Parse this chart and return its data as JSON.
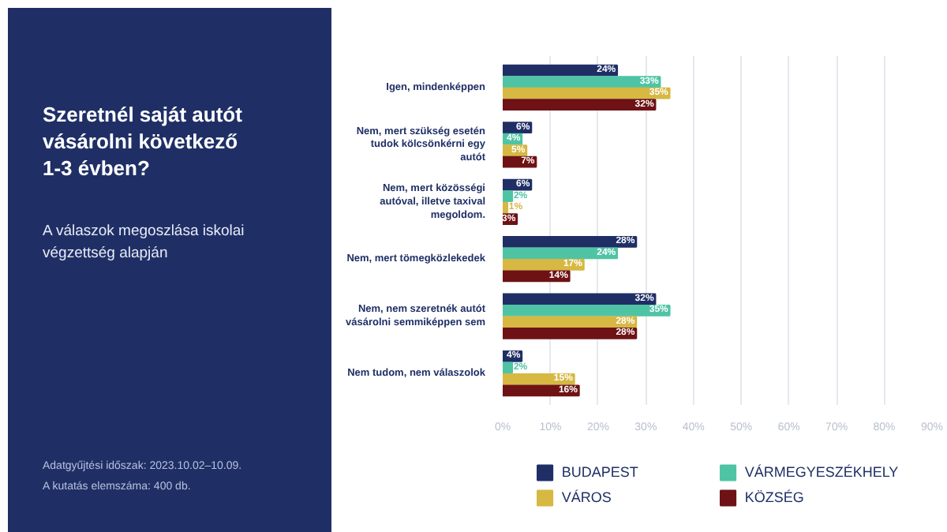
{
  "chart_data": {
    "type": "bar",
    "orientation": "horizontal",
    "title": "Szeretnél saját autót vásárolni következő 1-3 évben?",
    "subtitle": "A válaszok megoszlása iskolai végzettség alapján",
    "annotations": [
      "Adatgyűjtési időszak: 2023.10.02–10.09.",
      "A kutatás elemszáma: 400 db."
    ],
    "categories": [
      "Igen, mindenképpen",
      "Nem, mert szükség esetén tudok kölcsönkérni egy autót",
      "Nem, mert közösségi autóval, illetve taxival megoldom.",
      "Nem, mert tömegközlekedek",
      "Nem, nem szeretnék autót vásárolni semmiképpen sem",
      "Nem tudom, nem válaszolok"
    ],
    "series": [
      {
        "name": "BUDAPEST",
        "color": "#1f2f66",
        "values": [
          24,
          6,
          6,
          28,
          32,
          4
        ],
        "value_labels": [
          "24%",
          "6%",
          "6%",
          "28%",
          "32%",
          "4%"
        ]
      },
      {
        "name": "VÁRMEGYESZÉKHELY",
        "color": "#4fc4a4",
        "values": [
          33,
          4,
          2,
          24,
          35,
          2
        ],
        "value_labels": [
          "33%",
          "4%",
          "2%",
          "24%",
          "35%",
          "2%"
        ]
      },
      {
        "name": "VÁROS",
        "color": "#d6b843",
        "values": [
          35,
          5,
          1,
          17,
          28,
          15
        ],
        "value_labels": [
          "35%",
          "5%",
          "1%",
          "17%",
          "28%",
          "15%"
        ]
      },
      {
        "name": "KÖZSÉG",
        "color": "#6e1216",
        "values": [
          32,
          7,
          3,
          14,
          28,
          16
        ],
        "value_labels": [
          "32%",
          "7%",
          "3%",
          "14%",
          "28%",
          "16%"
        ]
      }
    ],
    "xlim": [
      0,
      90
    ],
    "xticks": [
      {
        "value": 0,
        "label": "0%"
      },
      {
        "value": 10,
        "label": "10%"
      },
      {
        "value": 20,
        "label": "20%"
      },
      {
        "value": 30,
        "label": "30%"
      },
      {
        "value": 40,
        "label": "40%"
      },
      {
        "value": 50,
        "label": "50%"
      },
      {
        "value": 60,
        "label": "60%"
      },
      {
        "value": 70,
        "label": "70%"
      },
      {
        "value": 80,
        "label": "80%"
      },
      {
        "value": 90,
        "label": "90%"
      }
    ],
    "grid": "x",
    "legend": "bottom"
  }
}
